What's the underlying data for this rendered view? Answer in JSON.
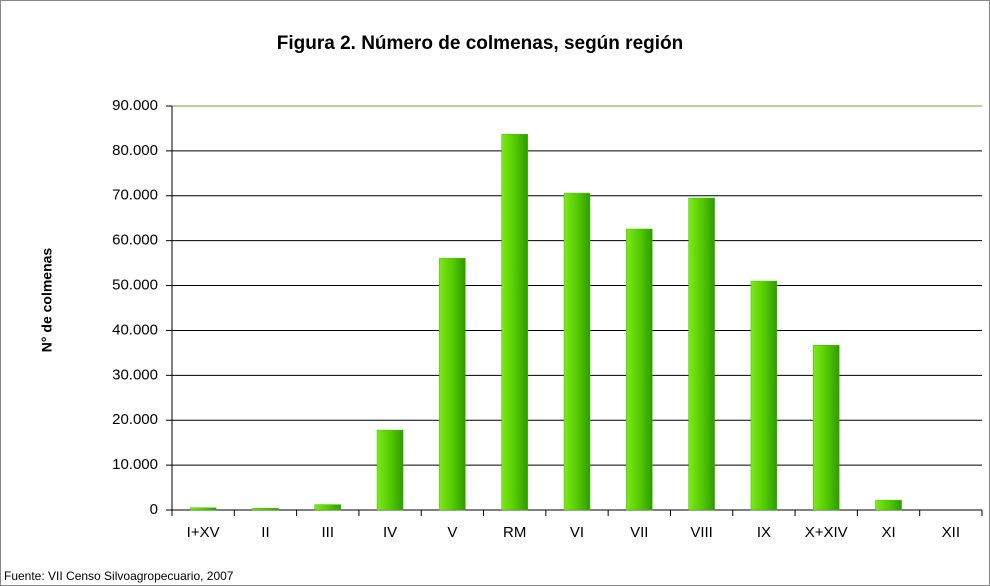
{
  "chart_data": {
    "type": "bar",
    "title": "Figura 2. Número de colmenas, según región",
    "y_label": "N° de colmenas",
    "source": "Fuente: VII Censo Silvoagropecuario,  2007",
    "categories": [
      "I+XV",
      "II",
      "III",
      "IV",
      "V",
      "RM",
      "VI",
      "VII",
      "VIII",
      "IX",
      "X+XIV",
      "XI",
      "XII"
    ],
    "values": [
      500,
      400,
      1200,
      17800,
      56100,
      83700,
      70600,
      62600,
      69500,
      51000,
      36700,
      2200,
      0
    ],
    "color": "#44bb00",
    "ylim": [
      0,
      90000
    ],
    "yticks": [
      0,
      {
        "value": 10000,
        "label": "10.000"
      },
      {
        "value": 20000,
        "label": "20.000"
      },
      {
        "value": 30000,
        "label": "30.000"
      },
      {
        "value": 40000,
        "label": "40.000"
      },
      {
        "value": 50000,
        "label": "50.000"
      },
      {
        "value": 60000,
        "label": "60.000"
      },
      {
        "value": 70000,
        "label": "70.000"
      },
      {
        "value": 80000,
        "label": "80.000"
      },
      {
        "value": 90000,
        "label": "90.000"
      }
    ],
    "grid": true
  }
}
